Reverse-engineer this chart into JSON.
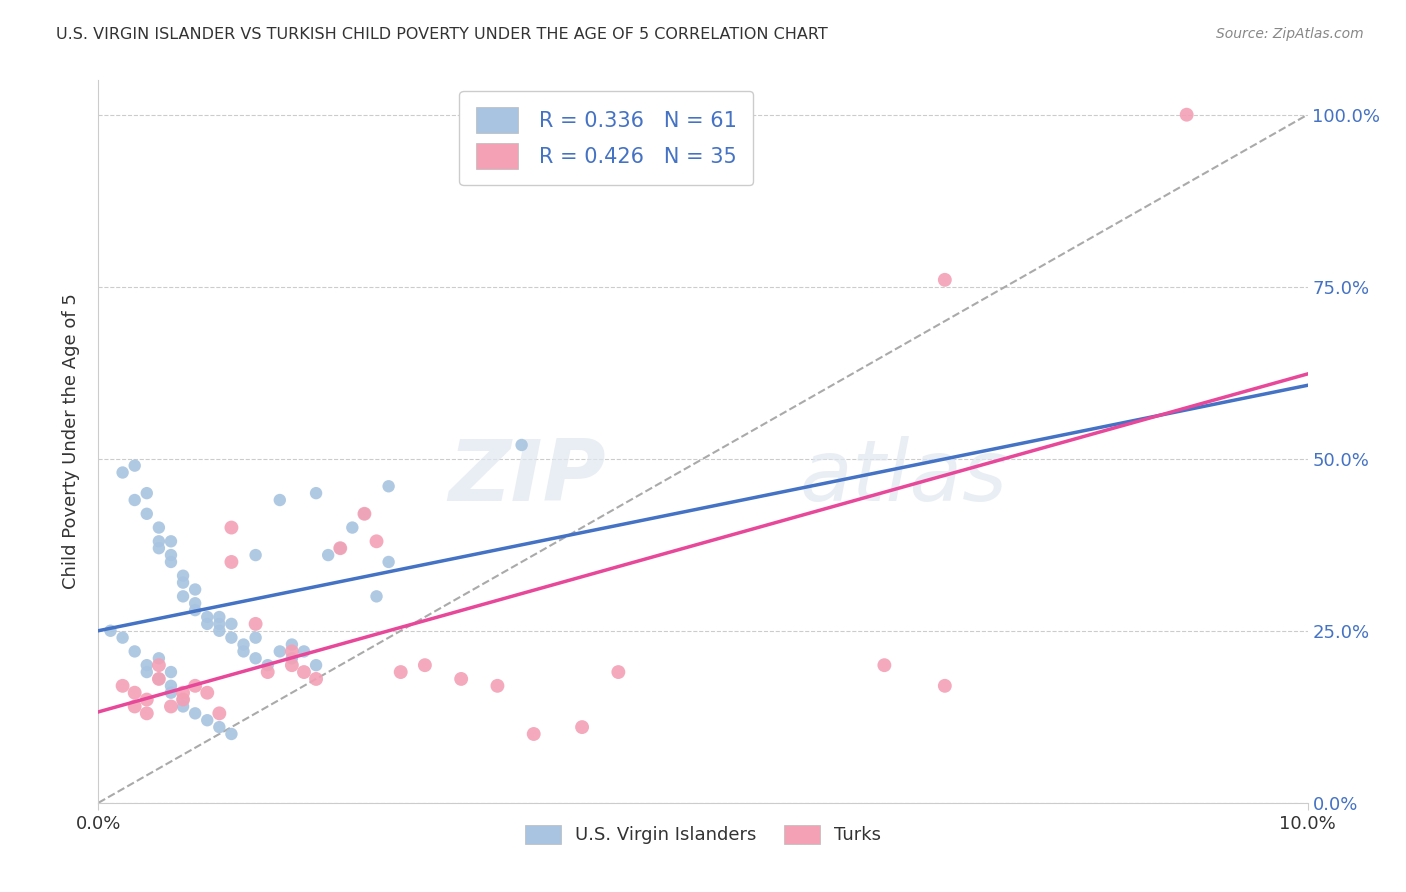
{
  "title": "U.S. VIRGIN ISLANDER VS TURKISH CHILD POVERTY UNDER THE AGE OF 5 CORRELATION CHART",
  "source": "Source: ZipAtlas.com",
  "ylabel": "Child Poverty Under the Age of 5",
  "xlim": [
    0.0,
    0.1
  ],
  "ylim": [
    0.0,
    1.05
  ],
  "ytick_labels": [
    "0.0%",
    "25.0%",
    "50.0%",
    "75.0%",
    "100.0%"
  ],
  "ytick_values": [
    0.0,
    0.25,
    0.5,
    0.75,
    1.0
  ],
  "xtick_labels": [
    "0.0%",
    "10.0%"
  ],
  "xtick_values": [
    0.0,
    0.1
  ],
  "vi_color": "#a8c4e0",
  "turk_color": "#f4a0b5",
  "vi_line_color": "#4472c4",
  "turk_line_color": "#e84899",
  "vi_R": "0.336",
  "vi_N": "61",
  "turk_R": "0.426",
  "turk_N": "35",
  "legend_label_vi": "U.S. Virgin Islanders",
  "legend_label_turk": "Turks",
  "watermark_zip": "ZIP",
  "watermark_atlas": "atlas",
  "background_color": "#ffffff",
  "vi_scatter_x": [
    0.002,
    0.003,
    0.003,
    0.004,
    0.004,
    0.005,
    0.005,
    0.005,
    0.006,
    0.006,
    0.006,
    0.007,
    0.007,
    0.007,
    0.008,
    0.008,
    0.008,
    0.009,
    0.009,
    0.01,
    0.01,
    0.01,
    0.011,
    0.011,
    0.012,
    0.012,
    0.013,
    0.013,
    0.014,
    0.015,
    0.016,
    0.016,
    0.017,
    0.018,
    0.019,
    0.02,
    0.021,
    0.022,
    0.023,
    0.024,
    0.001,
    0.002,
    0.003,
    0.004,
    0.004,
    0.005,
    0.005,
    0.006,
    0.006,
    0.006,
    0.007,
    0.007,
    0.008,
    0.009,
    0.01,
    0.011,
    0.013,
    0.015,
    0.018,
    0.024,
    0.035
  ],
  "vi_scatter_y": [
    0.48,
    0.49,
    0.44,
    0.42,
    0.45,
    0.38,
    0.4,
    0.37,
    0.36,
    0.38,
    0.35,
    0.33,
    0.3,
    0.32,
    0.29,
    0.28,
    0.31,
    0.27,
    0.26,
    0.26,
    0.25,
    0.27,
    0.24,
    0.26,
    0.23,
    0.22,
    0.24,
    0.21,
    0.2,
    0.22,
    0.21,
    0.23,
    0.22,
    0.2,
    0.36,
    0.37,
    0.4,
    0.42,
    0.3,
    0.35,
    0.25,
    0.24,
    0.22,
    0.2,
    0.19,
    0.18,
    0.21,
    0.19,
    0.17,
    0.16,
    0.15,
    0.14,
    0.13,
    0.12,
    0.11,
    0.1,
    0.36,
    0.44,
    0.45,
    0.46,
    0.52
  ],
  "turk_scatter_x": [
    0.002,
    0.003,
    0.003,
    0.004,
    0.004,
    0.005,
    0.005,
    0.006,
    0.007,
    0.007,
    0.008,
    0.009,
    0.01,
    0.011,
    0.011,
    0.013,
    0.014,
    0.016,
    0.016,
    0.017,
    0.018,
    0.02,
    0.022,
    0.023,
    0.025,
    0.027,
    0.03,
    0.033,
    0.036,
    0.04,
    0.043,
    0.065,
    0.07,
    0.09,
    0.07
  ],
  "turk_scatter_y": [
    0.17,
    0.16,
    0.14,
    0.15,
    0.13,
    0.18,
    0.2,
    0.14,
    0.15,
    0.16,
    0.17,
    0.16,
    0.13,
    0.35,
    0.4,
    0.26,
    0.19,
    0.22,
    0.2,
    0.19,
    0.18,
    0.37,
    0.42,
    0.38,
    0.19,
    0.2,
    0.18,
    0.17,
    0.1,
    0.11,
    0.19,
    0.2,
    0.76,
    1.0,
    0.17
  ]
}
